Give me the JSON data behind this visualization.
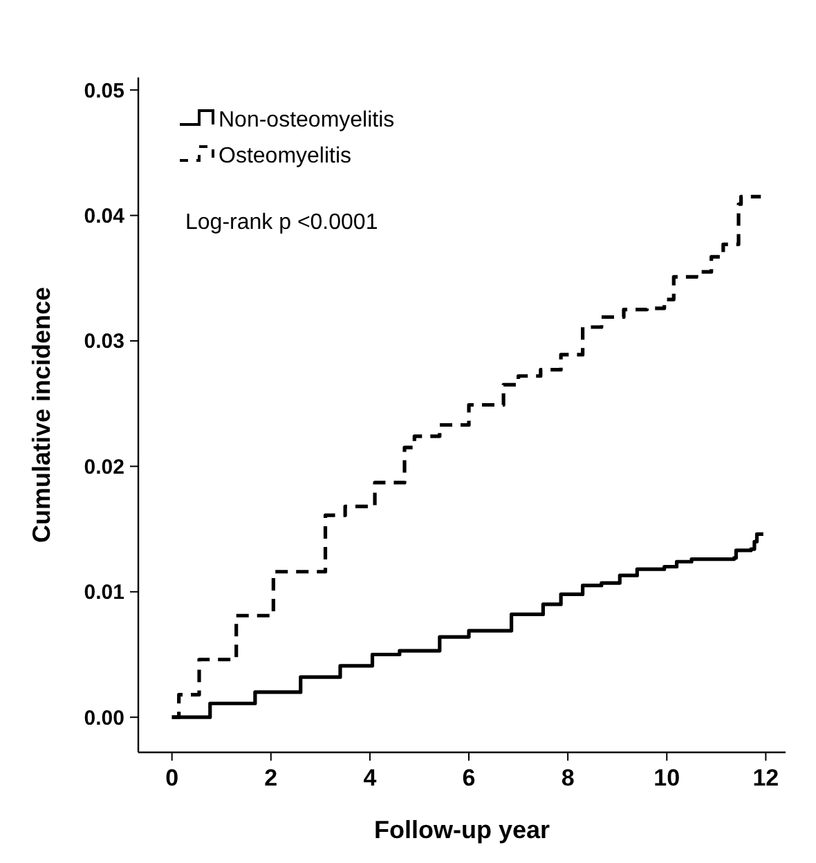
{
  "chart_data": {
    "type": "step",
    "xlabel": "Follow-up year",
    "ylabel": "Cumulative incidence",
    "xlim": [
      -0.68,
      12.4
    ],
    "xticks": [
      0,
      2,
      4,
      6,
      8,
      10,
      12
    ],
    "ylim": [
      -0.0028,
      0.051
    ],
    "yticks": [
      {
        "value": 0,
        "label": "0.00"
      },
      {
        "value": 0.01,
        "label": "0.01"
      },
      {
        "value": 0.02,
        "label": "0.02"
      },
      {
        "value": 0.03,
        "label": "0.03"
      },
      {
        "value": 0.04,
        "label": "0.04"
      },
      {
        "value": 0.05,
        "label": "0.05"
      }
    ],
    "grid": false,
    "legend": "top left",
    "annotations": [
      "Log-rank p <0.0001"
    ],
    "series": [
      {
        "name": "Non-osteomyelitis",
        "color": "#000000",
        "line_style": "solid",
        "x": [
          0,
          0.77,
          1.68,
          2.6,
          3.4,
          4.05,
          4.6,
          5.41,
          6,
          6.86,
          7.5,
          7.86,
          8.3,
          8.68,
          9.05,
          9.4,
          9.95,
          10.2,
          10.5,
          11.36,
          11.4,
          11.7,
          11.77,
          11.82,
          11.95
        ],
        "values": [
          0,
          0.0011,
          0.002,
          0.0032,
          0.0041,
          0.005,
          0.0053,
          0.0064,
          0.0069,
          0.0082,
          0.009,
          0.0098,
          0.0105,
          0.0107,
          0.0113,
          0.0118,
          0.012,
          0.0124,
          0.0126,
          0.0127,
          0.0133,
          0.0134,
          0.014,
          0.0146,
          0.0146
        ]
      },
      {
        "name": "Osteomyelitis",
        "color": "#000000",
        "line_style": "dashed",
        "x": [
          0,
          0.14,
          0.55,
          1.3,
          2.05,
          3.1,
          3.5,
          4.1,
          4.7,
          4.9,
          5.41,
          6,
          6.7,
          7,
          7.45,
          7.86,
          8.3,
          8.68,
          9.13,
          9.6,
          9.95,
          10.14,
          10.6,
          10.9,
          11.14,
          11.45,
          11.5,
          11.9
        ],
        "values": [
          0,
          0.0018,
          0.0046,
          0.0081,
          0.0116,
          0.0161,
          0.0168,
          0.0187,
          0.0215,
          0.0224,
          0.0233,
          0.0249,
          0.0265,
          0.0272,
          0.0277,
          0.0289,
          0.0311,
          0.0319,
          0.0325,
          0.0326,
          0.0333,
          0.0351,
          0.0355,
          0.0367,
          0.0377,
          0.0409,
          0.0415,
          0.0415
        ]
      }
    ]
  }
}
